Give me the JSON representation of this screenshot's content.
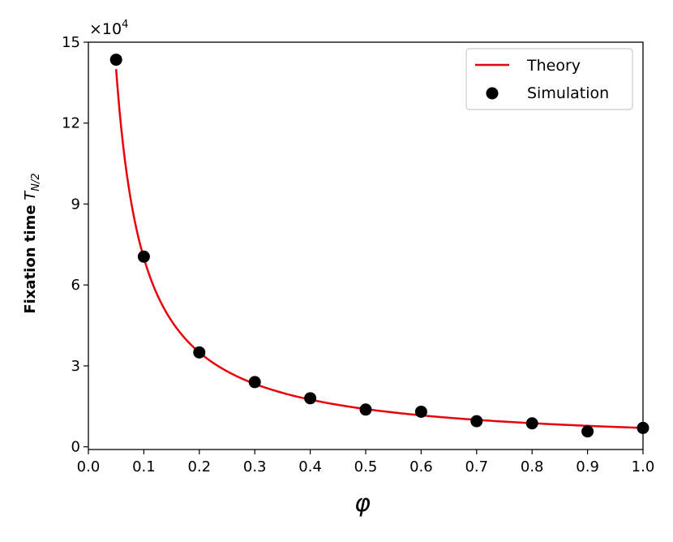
{
  "chart_data": {
    "type": "scatter",
    "title": "",
    "xlabel": "φ",
    "ylabel": "Fixation time",
    "ylabel_symbol": "T",
    "ylabel_subscript": "N/2",
    "y_multiplier": {
      "base": "×10",
      "exponent": "4"
    },
    "xlim": [
      0.0,
      1.0
    ],
    "ylim": [
      -0.1,
      15
    ],
    "x_ticks": [
      0.0,
      0.1,
      0.2,
      0.3,
      0.4,
      0.5,
      0.6,
      0.7,
      0.8,
      0.9,
      1.0
    ],
    "x_tick_labels": [
      "0.0",
      "0.1",
      "0.2",
      "0.3",
      "0.4",
      "0.5",
      "0.6",
      "0.7",
      "0.8",
      "0.9",
      "1.0"
    ],
    "y_ticks": [
      0,
      3,
      6,
      9,
      12,
      15
    ],
    "y_tick_labels": [
      "0",
      "3",
      "6",
      "9",
      "12",
      "15"
    ],
    "grid": false,
    "legend_position": "top-right",
    "series": [
      {
        "name": "Theory",
        "kind": "line",
        "color": "#e8000b",
        "x_range": [
          0.05,
          1.0
        ],
        "formula": "y = 0.7 / x (×10^4)"
      },
      {
        "name": "Simulation",
        "kind": "scatter",
        "color": "#000000",
        "x": [
          0.05,
          0.1,
          0.2,
          0.3,
          0.4,
          0.5,
          0.6,
          0.7,
          0.8,
          0.9,
          1.0
        ],
        "y": [
          14.35,
          7.05,
          3.5,
          2.4,
          1.8,
          1.38,
          1.3,
          0.95,
          0.87,
          0.57,
          0.7
        ]
      }
    ]
  }
}
